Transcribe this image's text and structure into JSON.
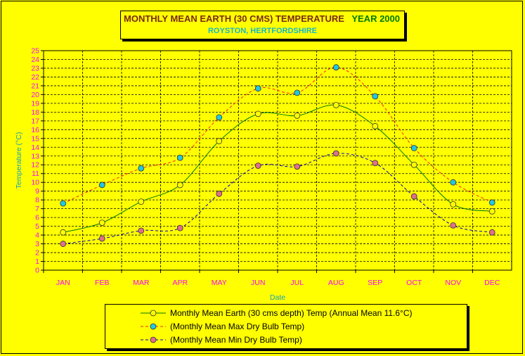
{
  "title": {
    "main": "MONTHLY MEAN EARTH (30 CMS) TEMPERATURE",
    "year": "YEAR 2000",
    "location": "ROYSTON, HERTFORDSHIRE"
  },
  "chart_data": {
    "type": "line",
    "title": "MONTHLY MEAN EARTH (30 CMS) TEMPERATURE",
    "xlabel": "Date",
    "ylabel": "Temperature (°C)",
    "ylim": [
      0,
      25
    ],
    "yticks": [
      0,
      1,
      2,
      3,
      4,
      5,
      6,
      7,
      8,
      9,
      10,
      11,
      12,
      13,
      14,
      15,
      16,
      17,
      18,
      19,
      20,
      21,
      22,
      23,
      24,
      25
    ],
    "grid": true,
    "legend_position": "bottom",
    "categories": [
      "JAN",
      "FEB",
      "MAR",
      "APR",
      "MAY",
      "JUN",
      "JUL",
      "AUG",
      "SEP",
      "OCT",
      "NOV",
      "DEC"
    ],
    "series": [
      {
        "name": "Monthly Mean Earth (30 cms depth) Temp (Annual Mean 11.6°C)",
        "values": [
          4.3,
          5.4,
          7.8,
          9.7,
          14.7,
          17.8,
          17.6,
          18.8,
          16.4,
          12.0,
          7.5,
          6.7
        ],
        "line_color": "#007a00",
        "marker_color": "#ffff00",
        "dash": "solid"
      },
      {
        "name": "(Monthly Mean Max Dry Bulb Temp)",
        "values": [
          7.6,
          9.7,
          11.6,
          12.8,
          17.4,
          20.7,
          20.2,
          23.1,
          19.8,
          13.9,
          10.0,
          7.7
        ],
        "line_color": "#ff2020",
        "marker_color": "#22c8e0",
        "dash": "dashed"
      },
      {
        "name": "(Monthly Mean Min Dry Bulb Temp)",
        "values": [
          3.0,
          3.6,
          4.5,
          4.8,
          8.7,
          11.9,
          11.8,
          13.3,
          12.2,
          8.4,
          5.1,
          4.3
        ],
        "line_color": "#0000c8",
        "marker_color": "#e0708a",
        "dash": "dashed"
      }
    ]
  },
  "colors": {
    "background": "#ffff00",
    "tick_label_y": "#ff00ff",
    "tick_label_x": "#ff00ff",
    "axis_title": "#15a0b8"
  }
}
